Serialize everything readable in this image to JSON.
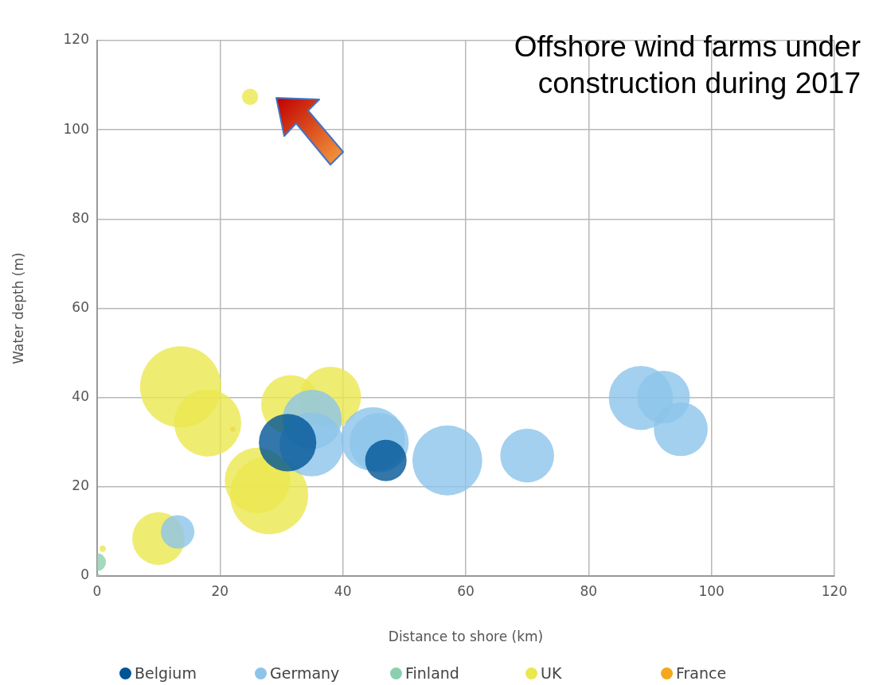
{
  "chart_data": {
    "type": "bubble",
    "title": "Offshore wind farms under construction during 2017",
    "xlabel": "Distance to shore (km)",
    "ylabel": "Water depth (m)",
    "xlim": [
      0,
      120
    ],
    "xticks": [
      0,
      20,
      40,
      60,
      80,
      100,
      120
    ],
    "ylim": [
      0,
      120
    ],
    "yticks": [
      0,
      20,
      40,
      60,
      80,
      100,
      120
    ],
    "grid": true,
    "legend": "bottom",
    "series": [
      {
        "name": "Belgium",
        "color": "#005596",
        "x": [
          31.0,
          47.0
        ],
        "values": [
          29.9,
          25.9
        ],
        "sizes": [
          0.5,
          0.26
        ]
      },
      {
        "name": "Germany",
        "color": "#8cc4ea",
        "x": [
          13.1,
          34.9,
          35.0,
          44.9,
          45.9,
          57.0,
          70.0,
          88.5,
          92.2,
          95.0
        ],
        "values": [
          9.9,
          29.5,
          35.1,
          30.7,
          29.9,
          25.9,
          27.0,
          39.9,
          40.1,
          32.9
        ],
        "sizes": [
          0.17,
          0.62,
          0.53,
          0.62,
          0.53,
          0.74,
          0.44,
          0.62,
          0.42,
          0.44
        ]
      },
      {
        "name": "Finland",
        "color": "#8ccfae",
        "x": [
          0,
          0
        ],
        "values": [
          3.1,
          0
        ],
        "sizes": [
          0.047,
          0.004
        ]
      },
      {
        "name": "UK",
        "color": "#ebe74f",
        "x": [
          13.6,
          18.0,
          31.5,
          38.0,
          26.1,
          28.0,
          10.0,
          0.9,
          24.9
        ],
        "values": [
          42.4,
          34.3,
          38.4,
          40.1,
          21.4,
          18.1,
          8.4,
          6.1,
          107.4
        ],
        "sizes": [
          1,
          0.68,
          0.53,
          0.56,
          0.65,
          0.92,
          0.42,
          0.006,
          0.04
        ]
      },
      {
        "name": "France",
        "color": "#f5a81c",
        "x": [
          22.1
        ],
        "values": [
          32.9
        ],
        "sizes": [
          0.004
        ]
      }
    ]
  }
}
